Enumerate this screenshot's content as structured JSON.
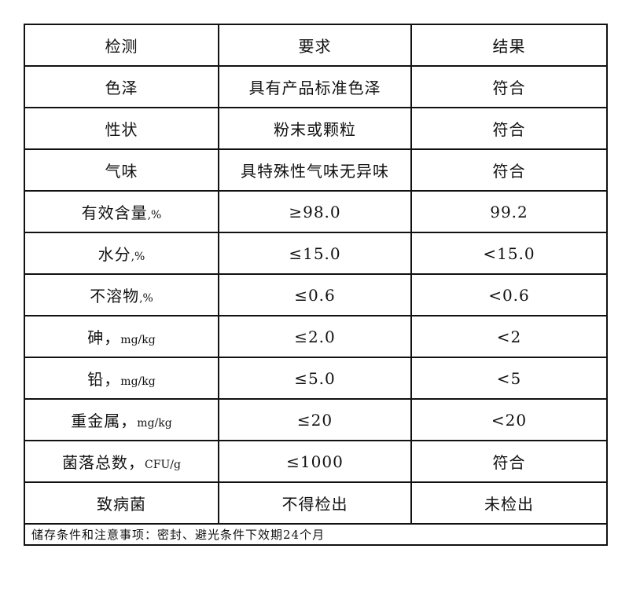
{
  "header": {
    "item": "检测",
    "requirement": "要求",
    "result": "结果"
  },
  "rows": [
    {
      "item": "色泽",
      "unit": "",
      "requirement": "具有产品标准色泽",
      "result": "符合"
    },
    {
      "item": "性状",
      "unit": "",
      "requirement": "粉末或颗粒",
      "result": "符合"
    },
    {
      "item": "气味",
      "unit": "",
      "requirement": "具特殊性气味无异味",
      "result": "符合"
    },
    {
      "item": "有效含量",
      "unit": ",%",
      "requirement": "≥98.0",
      "result": "99.2"
    },
    {
      "item": "水分",
      "unit": ",%",
      "requirement": "≤15.0",
      "result": "<15.0"
    },
    {
      "item": "不溶物",
      "unit": ",%",
      "requirement": "≤0.6",
      "result": "<0.6"
    },
    {
      "item": "砷，",
      "unit": "mg/kg",
      "requirement": "≤2.0",
      "result": "<2"
    },
    {
      "item": "铅，",
      "unit": "mg/kg",
      "requirement": "≤5.0",
      "result": "<5"
    },
    {
      "item": "重金属，",
      "unit": "mg/kg",
      "requirement": "≤20",
      "result": "<20"
    },
    {
      "item": "菌落总数，",
      "unit": "CFU/g",
      "requirement": "≤1000",
      "result": "符合"
    },
    {
      "item": "致病菌",
      "unit": "",
      "requirement": "不得检出",
      "result": "未检出"
    }
  ],
  "footer": "储存条件和注意事项：密封、避光条件下效期24个月"
}
